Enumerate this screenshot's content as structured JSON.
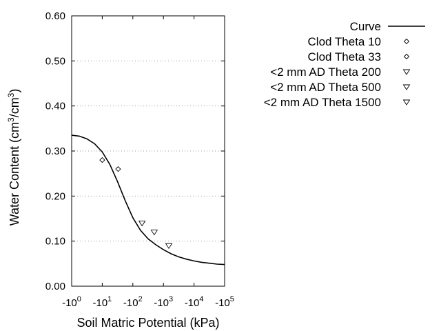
{
  "chart_data": {
    "type": "scatter",
    "xlabel": "Soil Matric Potential (kPa)",
    "ylabel_main": "Water Content (cm",
    "ylabel_sup": "3",
    "ylabel_mid": "/cm",
    "ylabel_sup2": "3",
    "ylabel_end": ")",
    "x_scale": "log",
    "xlim": [
      1,
      100000
    ],
    "ylim": [
      0,
      0.6
    ],
    "grid": "horizontal dotted",
    "legend_position": "right",
    "y_ticks": [
      {
        "value": 0.0,
        "label": "0.00"
      },
      {
        "value": 0.1,
        "label": "0.10"
      },
      {
        "value": 0.2,
        "label": "0.20"
      },
      {
        "value": 0.3,
        "label": "0.30"
      },
      {
        "value": 0.4,
        "label": "0.40"
      },
      {
        "value": 0.5,
        "label": "0.50"
      },
      {
        "value": 0.6,
        "label": "0.60"
      }
    ],
    "x_ticks": [
      {
        "value": 1,
        "base": "-10",
        "exp": "0"
      },
      {
        "value": 10,
        "base": "-10",
        "exp": "1"
      },
      {
        "value": 100,
        "base": "-10",
        "exp": "2"
      },
      {
        "value": 1000,
        "base": "-10",
        "exp": "3"
      },
      {
        "value": 10000,
        "base": "-10",
        "exp": "4"
      },
      {
        "value": 100000,
        "base": "-10",
        "exp": "5"
      }
    ],
    "curve": {
      "name": "Curve",
      "x": [
        1,
        1.78,
        3.16,
        5.62,
        10,
        17.8,
        31.6,
        56.2,
        100,
        178,
        316,
        562,
        1000,
        1780,
        3160,
        5620,
        10000,
        17800,
        31600,
        56200,
        100000
      ],
      "y": [
        0.335,
        0.333,
        0.327,
        0.316,
        0.298,
        0.27,
        0.232,
        0.19,
        0.152,
        0.124,
        0.105,
        0.092,
        0.081,
        0.072,
        0.065,
        0.06,
        0.056,
        0.053,
        0.051,
        0.049,
        0.048
      ]
    },
    "series": [
      {
        "name": "Clod Theta 10",
        "marker": "diamond",
        "x": [
          10
        ],
        "y": [
          0.28
        ]
      },
      {
        "name": "Clod Theta 33",
        "marker": "diamond",
        "x": [
          33
        ],
        "y": [
          0.26
        ]
      },
      {
        "name": "<2 mm AD Theta 200",
        "marker": "triangle-down",
        "x": [
          200
        ],
        "y": [
          0.14
        ]
      },
      {
        "name": "<2 mm AD Theta 500",
        "marker": "triangle-down",
        "x": [
          500
        ],
        "y": [
          0.12
        ]
      },
      {
        "name": "<2 mm AD Theta 1500",
        "marker": "triangle-down",
        "x": [
          1500
        ],
        "y": [
          0.09
        ]
      }
    ]
  }
}
